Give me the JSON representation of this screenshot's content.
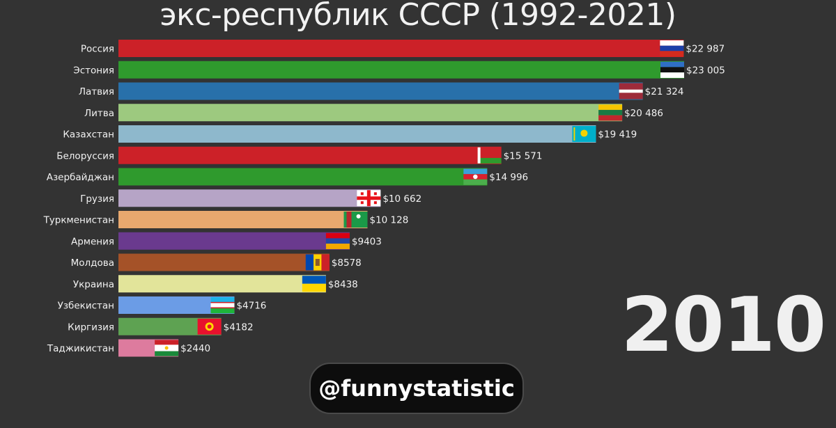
{
  "title": "экс-республик СССР (1992-2021)",
  "year": "2010",
  "watermark": "@funnystatistic",
  "chart_data": {
    "type": "bar",
    "orientation": "horizontal",
    "title": "экс-республик СССР (1992-2021)",
    "period": "2010",
    "grid": false,
    "categories": [
      "Россия",
      "Эстония",
      "Латвия",
      "Литва",
      "Казахстан",
      "Белоруссия",
      "Азербайджан",
      "Грузия",
      "Туркменистан",
      "Армения",
      "Молдова",
      "Украина",
      "Узбекистан",
      "Киргизия",
      "Таджикистан"
    ],
    "values": [
      22987,
      23005,
      21324,
      20486,
      19419,
      15571,
      14996,
      10662,
      10128,
      9403,
      8578,
      8438,
      4716,
      4182,
      2440
    ],
    "value_labels": [
      "$22 987",
      "$23 005",
      "$21 324",
      "$20 486",
      "$19 419",
      "$15 571",
      "$14 996",
      "$10 662",
      "$10 128",
      "$9403",
      "$8578",
      "$8438",
      "$4716",
      "$4182",
      "$2440"
    ],
    "colors": [
      "#cc2128",
      "#2f9a2d",
      "#2870aa",
      "#9dc97f",
      "#8eb8cc",
      "#cc2128",
      "#2f9a2d",
      "#b6a4c6",
      "#e8a86e",
      "#6a3a8e",
      "#a55228",
      "#e2e49a",
      "#6b9ce6",
      "#5ea252",
      "#dd7b9e"
    ],
    "flags": [
      "russia-flag",
      "estonia-flag",
      "latvia-flag",
      "lithuania-flag",
      "kazakhstan-flag",
      "belarus-flag",
      "azerbaijan-flag",
      "georgia-flag",
      "turkmenistan-flag",
      "armenia-flag",
      "moldova-flag",
      "ukraine-flag",
      "uzbekistan-flag",
      "kyrgyzstan-flag",
      "tajikistan-flag"
    ]
  }
}
